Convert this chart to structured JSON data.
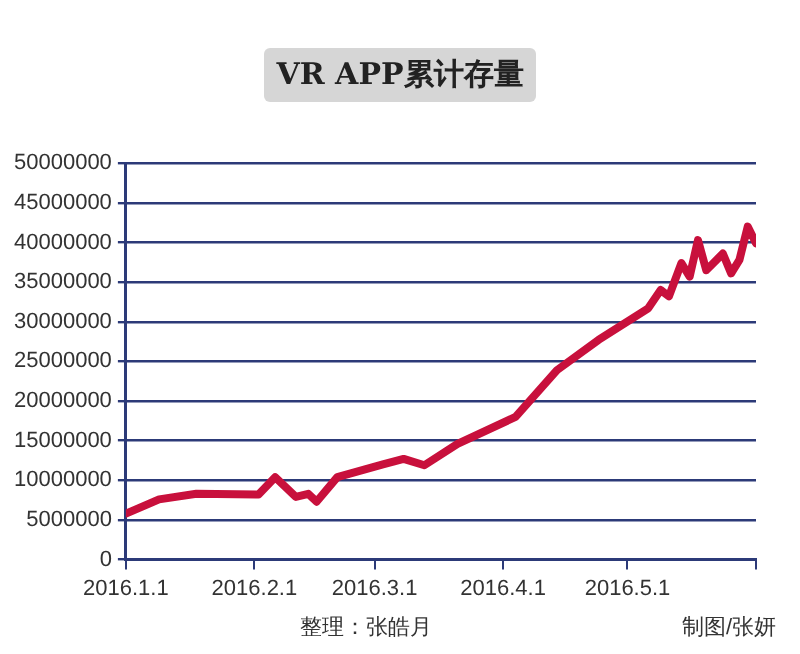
{
  "chart_data": {
    "type": "line",
    "title": "VR APP累计存量",
    "annotations": [
      "整理：张皓月",
      "制图/张妍"
    ],
    "series": [
      {
        "color": "#c8103c",
        "x": [
          "2016-01-01",
          "2016-01-09",
          "2016-01-18",
          "2016-02-02",
          "2016-02-06",
          "2016-02-11",
          "2016-02-14",
          "2016-02-16",
          "2016-02-21",
          "2016-03-03",
          "2016-03-08",
          "2016-03-13",
          "2016-03-21",
          "2016-04-04",
          "2016-04-14",
          "2016-04-24",
          "2016-05-06",
          "2016-05-09",
          "2016-05-11",
          "2016-05-14",
          "2016-05-16",
          "2016-05-18",
          "2016-05-20",
          "2016-05-24",
          "2016-05-26",
          "2016-05-28",
          "2016-05-30",
          "2016-06-01"
        ],
        "values": [
          5800000,
          7600000,
          8300000,
          8200000,
          10400000,
          7900000,
          8300000,
          7300000,
          10400000,
          12000000,
          12700000,
          11900000,
          14600000,
          18000000,
          23900000,
          27700000,
          31700000,
          34000000,
          33200000,
          37400000,
          35700000,
          40300000,
          36500000,
          38600000,
          36100000,
          37800000,
          42000000,
          39900000
        ]
      }
    ],
    "xlim": [
      "2016-01-01",
      "2016-06-01"
    ],
    "xticks": [
      {
        "value": "2016-01-01",
        "label": "2016.1.1"
      },
      {
        "value": "2016-02-01",
        "label": "2016.2.1"
      },
      {
        "value": "2016-03-01",
        "label": "2016.3.1"
      },
      {
        "value": "2016-04-01",
        "label": "2016.4.1"
      },
      {
        "value": "2016-05-01",
        "label": "2016.5.1"
      },
      {
        "value": "2016-06-01",
        "label": null
      }
    ],
    "ylim": [
      0,
      50000000
    ],
    "yticks": [
      0,
      5000000,
      10000000,
      15000000,
      20000000,
      25000000,
      30000000,
      35000000,
      40000000,
      45000000,
      50000000
    ],
    "grid": "y",
    "legend": false,
    "marker": "none",
    "line_style": "solid"
  }
}
